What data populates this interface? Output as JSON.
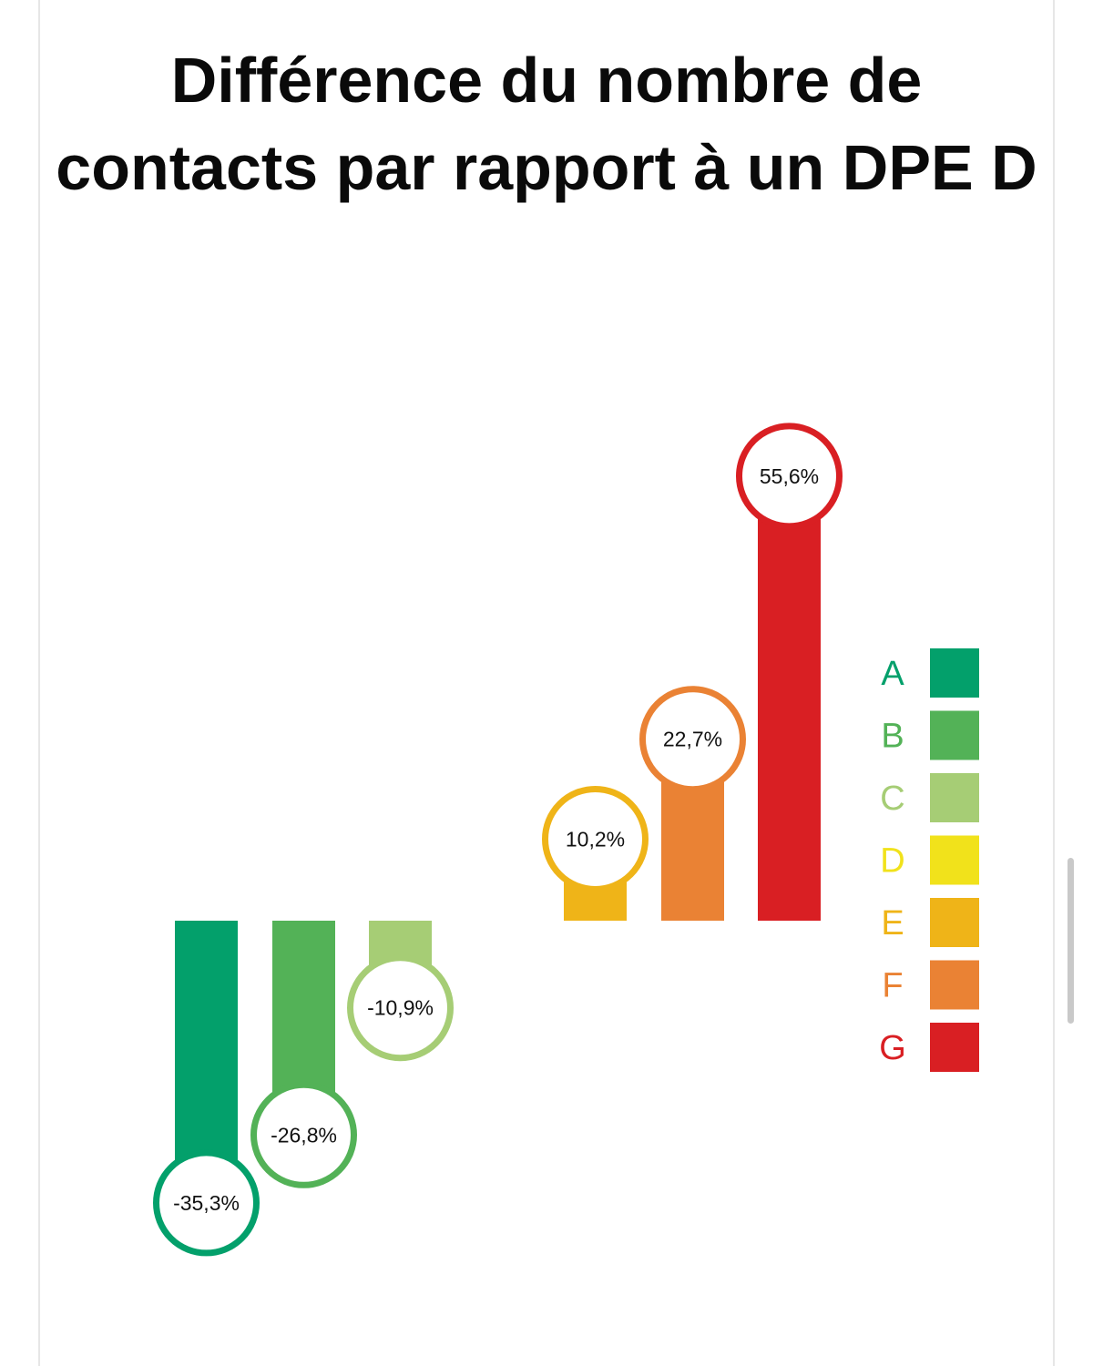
{
  "chart_data": {
    "type": "bar",
    "title": "Différence du nombre de contacts par rapport à un DPE D",
    "categories": [
      "A",
      "B",
      "C",
      "D",
      "E",
      "F",
      "G"
    ],
    "values": [
      -35.3,
      -26.8,
      -10.9,
      null,
      10.2,
      22.7,
      55.6
    ],
    "value_labels": [
      "-35,3%",
      "-26,8%",
      "-10,9%",
      "",
      "10,2%",
      "22,7%",
      "55,6%"
    ],
    "colors": [
      "#03a06b",
      "#53b257",
      "#a6cd75",
      "#f1e21b",
      "#efb418",
      "#ea8234",
      "#d91f23"
    ],
    "legend": {
      "position": "right",
      "items": [
        {
          "label": "A",
          "color": "#03a06b"
        },
        {
          "label": "B",
          "color": "#53b257"
        },
        {
          "label": "C",
          "color": "#a6cd75"
        },
        {
          "label": "D",
          "color": "#f1e21b"
        },
        {
          "label": "E",
          "color": "#efb418"
        },
        {
          "label": "F",
          "color": "#ea8234"
        },
        {
          "label": "G",
          "color": "#d91f23"
        }
      ]
    },
    "grid": false
  }
}
